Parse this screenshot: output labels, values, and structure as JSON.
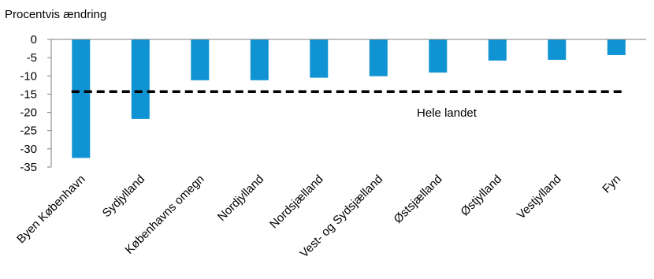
{
  "chart_data": {
    "type": "bar",
    "ylabel": "Procentvis ændring",
    "categories": [
      "Byen København",
      "Sydjylland",
      "Københavns omegn",
      "Nordjylland",
      "Nordsjælland",
      "Vest- og Sydsjælland",
      "Østsjælland",
      "Østjylland",
      "Vestjylland",
      "Fyn"
    ],
    "values": [
      -32.5,
      -21.8,
      -11.2,
      -11.2,
      -10.5,
      -10.1,
      -9.1,
      -5.8,
      -5.6,
      -4.3
    ],
    "ylim": [
      -35,
      0
    ],
    "yticks": [
      0,
      -5,
      -10,
      -15,
      -20,
      -25,
      -30,
      -35
    ],
    "reference_line": {
      "label": "Hele landet",
      "value": -14.3
    },
    "bar_color": "#0f93d2",
    "grid": false,
    "legend": "none"
  }
}
